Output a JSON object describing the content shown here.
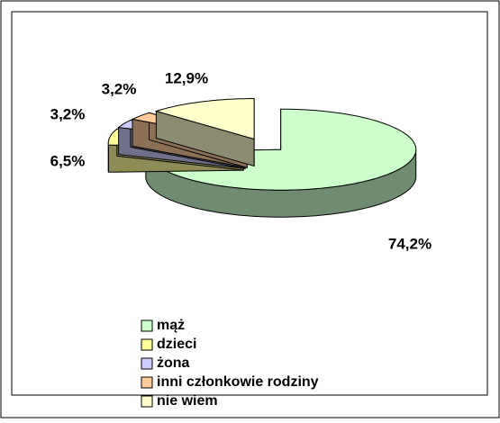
{
  "chart_data": {
    "type": "pie3d",
    "categories": [
      "mąż",
      "dzieci",
      "żona",
      "inni członkowie rodziny",
      "nie wiem"
    ],
    "values": [
      74.2,
      6.5,
      3.2,
      3.2,
      12.9
    ],
    "value_labels": [
      "74,2%",
      "6,5%",
      "3,2%",
      "3,2%",
      "12,9%"
    ],
    "colors": [
      "#ccffcc",
      "#ffff99",
      "#ccccff",
      "#ffcc99",
      "#ffffcc"
    ],
    "legend": "bottom"
  }
}
